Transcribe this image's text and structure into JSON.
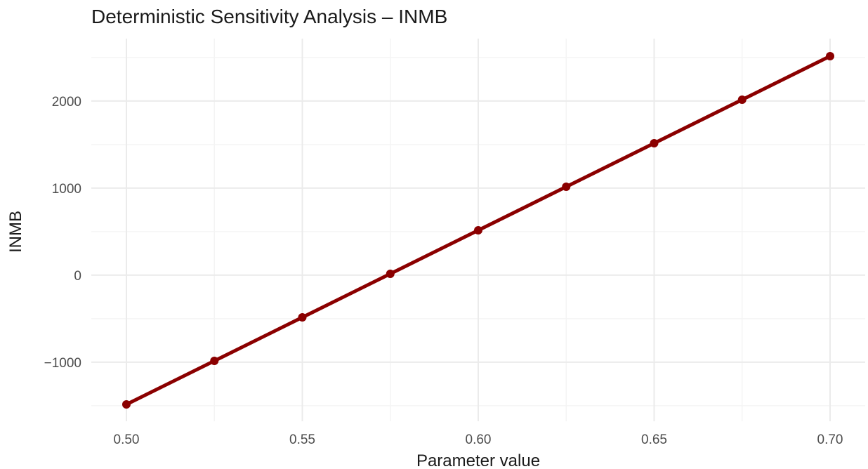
{
  "chart_data": {
    "type": "line",
    "title": "Deterministic Sensitivity Analysis – INMB",
    "xlabel": "Parameter value",
    "ylabel": "INMB",
    "x": [
      0.5,
      0.525,
      0.55,
      0.575,
      0.6,
      0.625,
      0.65,
      0.675,
      0.7
    ],
    "series": [
      {
        "values": [
          -1485,
          -985,
          -485,
          15,
          515,
          1015,
          1515,
          2015,
          2515
        ],
        "color": "#8b0000"
      }
    ],
    "xlim": [
      0.49,
      0.71
    ],
    "ylim": [
      -1485,
      2515
    ],
    "x_ticks": [
      0.5,
      0.55,
      0.6,
      0.65,
      0.7
    ],
    "x_tick_labels": [
      "0.50",
      "0.55",
      "0.60",
      "0.65",
      "0.70"
    ],
    "y_ticks": [
      -1000,
      0,
      1000,
      2000
    ],
    "y_tick_labels": [
      "−1000",
      "0",
      "1000",
      "2000"
    ],
    "grid": true,
    "legend": "none"
  }
}
